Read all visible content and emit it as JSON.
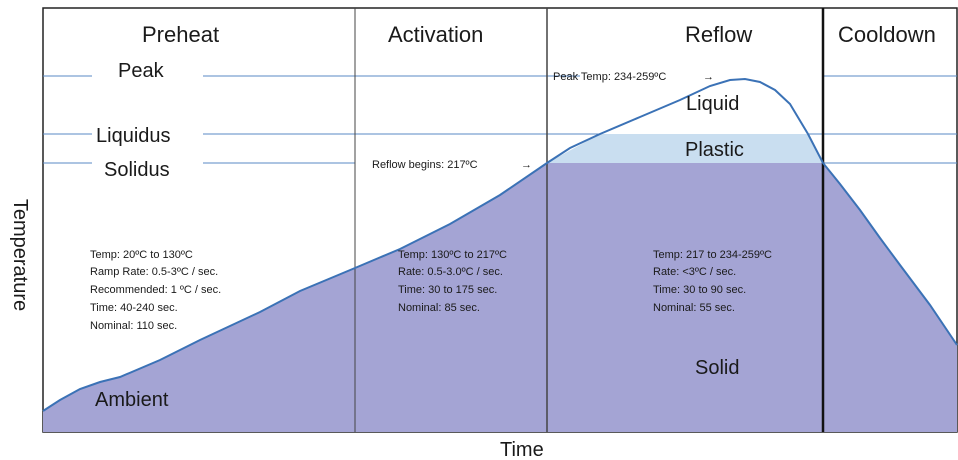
{
  "phases": [
    "Preheat",
    "Activation",
    "Reflow",
    "Cooldown"
  ],
  "levels": {
    "peak": "Peak",
    "liquidus": "Liquidus",
    "solidus": "Solidus"
  },
  "axes": {
    "x": "Time",
    "y": "Temperature"
  },
  "states": {
    "liquid": "Liquid",
    "plastic": "Plastic",
    "solid": "Solid",
    "ambient": "Ambient"
  },
  "callouts": {
    "peak_temp": "Peak Temp: 234-259ºC",
    "reflow_begins": "Reflow begins: 217ºC"
  },
  "notes": {
    "preheat": [
      "Temp: 20ºC to 130ºC",
      "Ramp Rate: 0.5-3ºC / sec.",
      "Recommended: 1 ºC / sec.",
      "Time: 40-240 sec.",
      "Nominal: 110 sec."
    ],
    "activation": [
      "Temp: 130ºC to 217ºC",
      "Rate: 0.5-3.0ºC / sec.",
      "Time: 30 to 175 sec.",
      "Nominal: 85 sec."
    ],
    "reflow": [
      "Temp: 217 to 234-259ºC",
      "Rate: <3ºC / sec.",
      "Time: 30 to 90 sec.",
      "Nominal: 55 sec."
    ]
  },
  "colors": {
    "fill": "#a4a4d4",
    "plastic": "#c9def0",
    "curve": "#3b72b6",
    "guide": "#5a8ac4",
    "divider": "#333333"
  }
}
